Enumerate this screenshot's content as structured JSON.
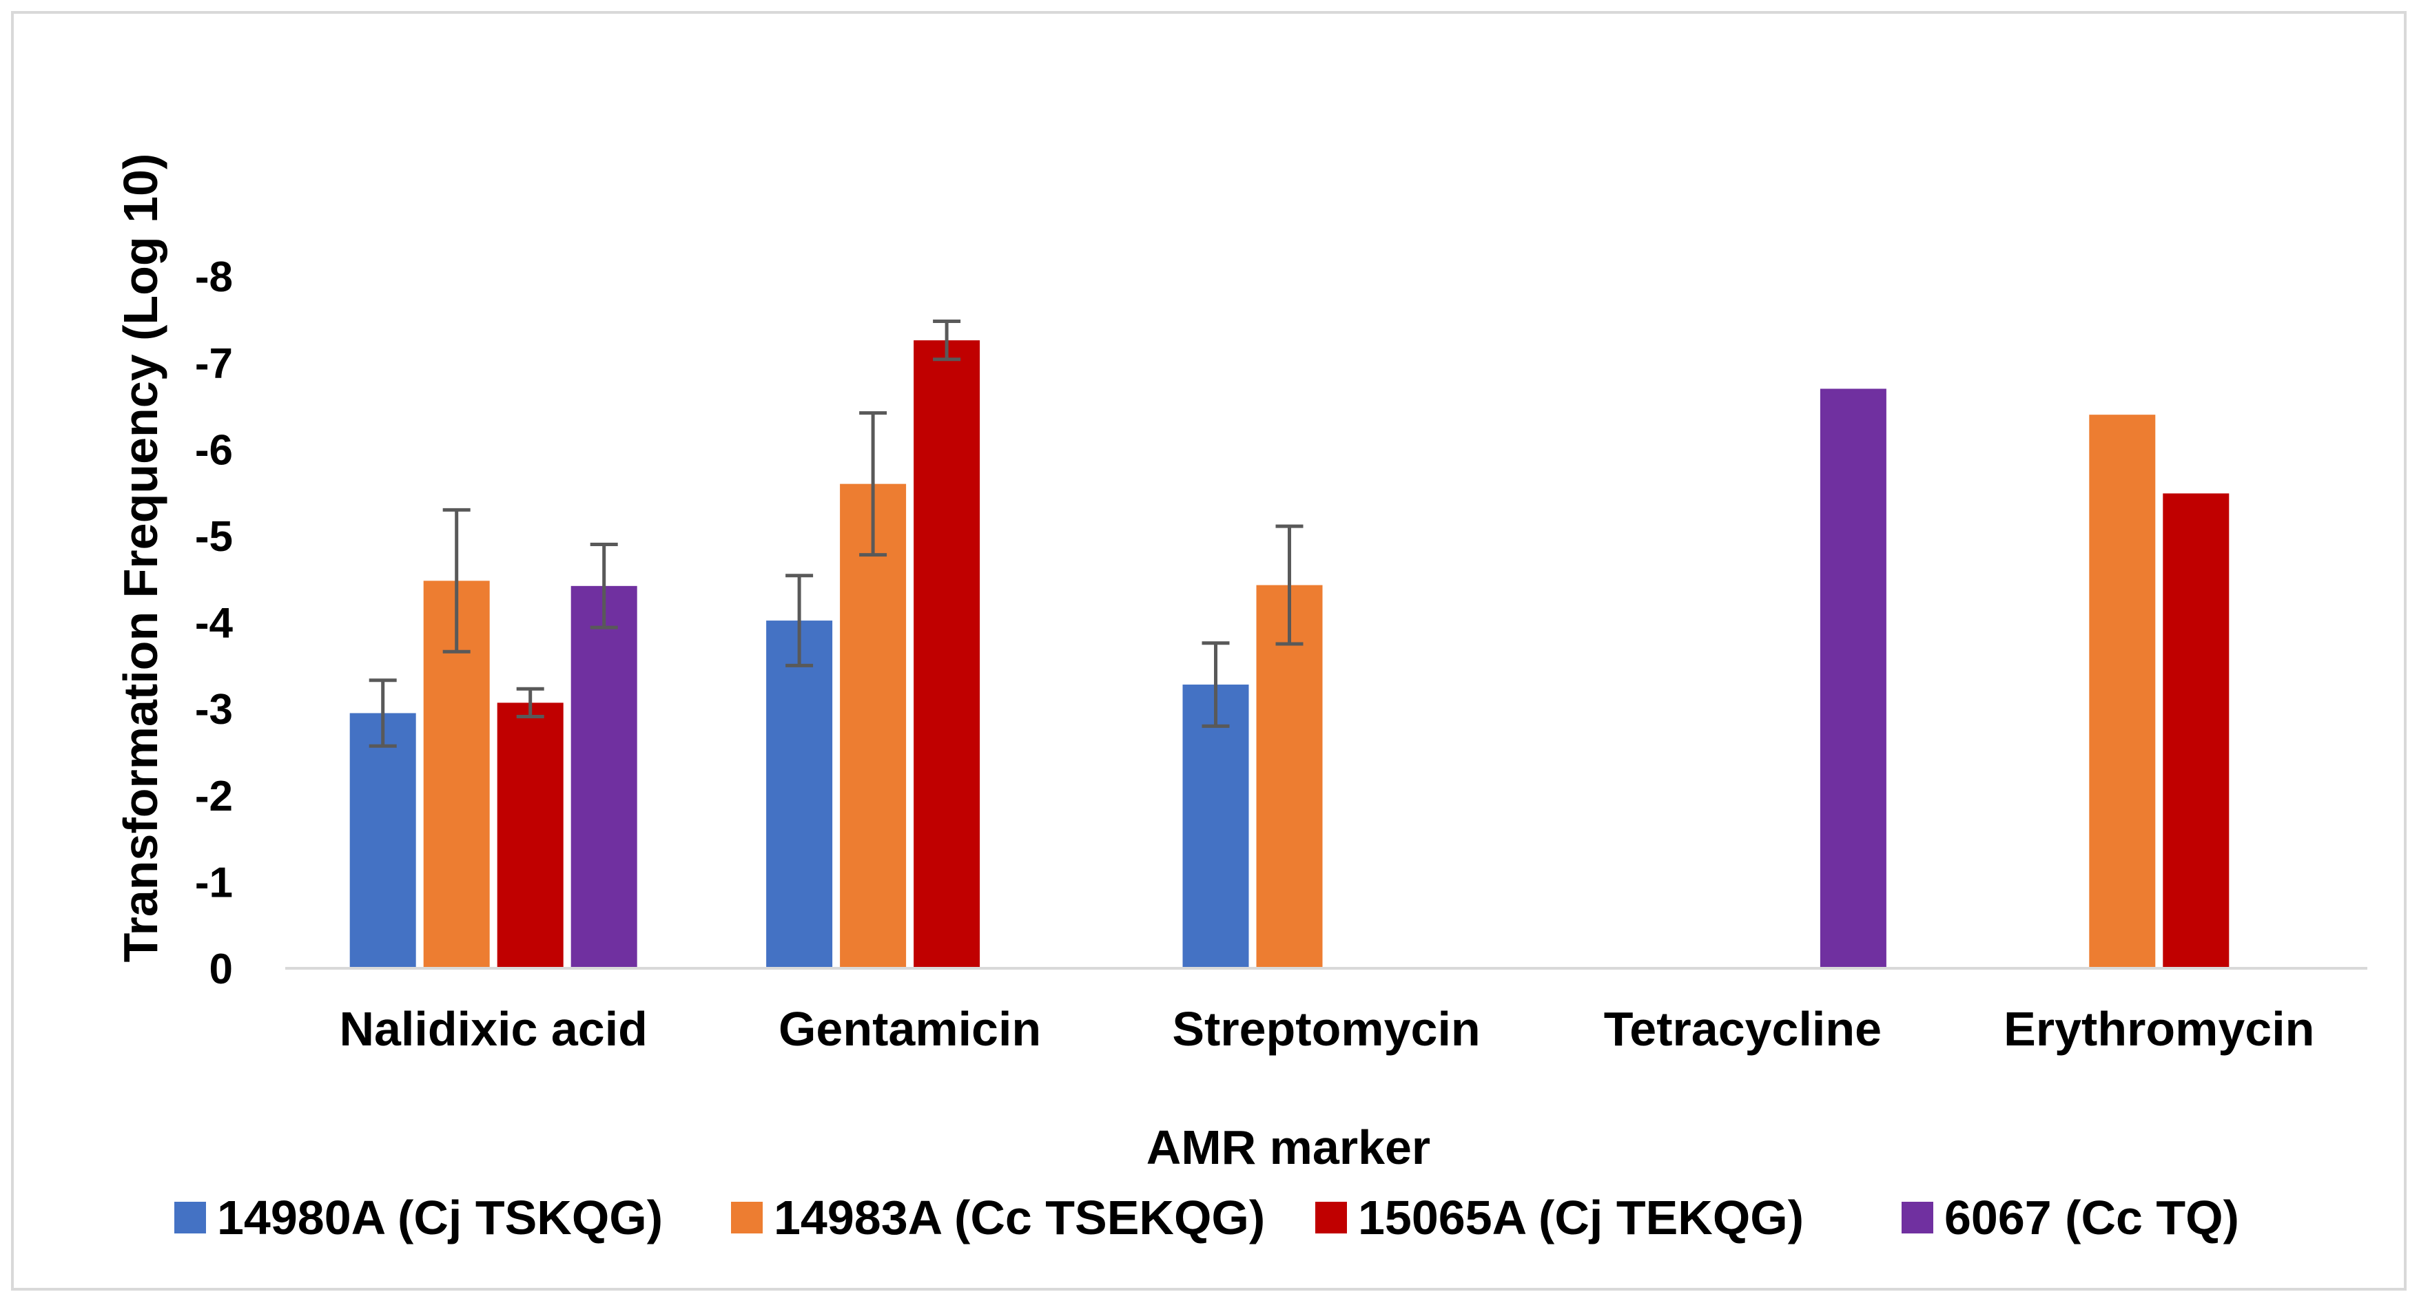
{
  "chart_data": {
    "type": "bar",
    "title": "",
    "xlabel": "AMR marker",
    "ylabel": "Transformation Frequency (Log 10)",
    "categories": [
      "Nalidixic acid",
      "Gentamicin",
      "Streptomycin",
      "Tetracycline",
      "Erythromycin"
    ],
    "yticks": [
      "0",
      "-1",
      "-2",
      "-3",
      "-4",
      "-5",
      "-6",
      "-7",
      "-8"
    ],
    "ylim": [
      0,
      -8
    ],
    "grid": false,
    "legend_position": "bottom",
    "series": [
      {
        "name": "14980A (Cj TSKQG)",
        "color": "#4472c4",
        "values": [
          -2.95,
          -4.02,
          -3.28,
          null,
          null
        ],
        "errors": [
          0.38,
          0.52,
          0.48,
          null,
          null
        ]
      },
      {
        "name": "14983A (Cc TSEKQG)",
        "color": "#ed7d31",
        "values": [
          -4.48,
          -5.6,
          -4.43,
          null,
          -6.4
        ],
        "errors": [
          0.82,
          0.82,
          0.68,
          null,
          null
        ]
      },
      {
        "name": "15065A (Cj TEKQG)",
        "color": "#c00000",
        "values": [
          -3.07,
          -7.26,
          null,
          null,
          -5.49
        ],
        "errors": [
          0.16,
          0.22,
          null,
          null,
          null
        ]
      },
      {
        "name": "6067 (Cc TQ)",
        "color": "#7030a0",
        "values": [
          -4.42,
          null,
          null,
          -6.7,
          null
        ],
        "errors": [
          0.48,
          null,
          null,
          null,
          null
        ]
      }
    ]
  }
}
